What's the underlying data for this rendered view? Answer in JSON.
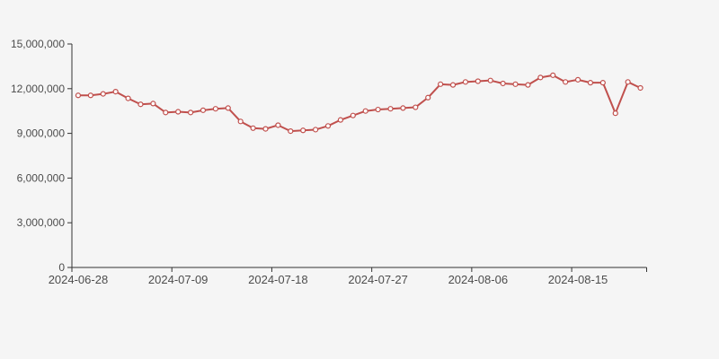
{
  "page": {
    "background_color": "#f5f5f5"
  },
  "chart_data": {
    "type": "line",
    "title": "",
    "xlabel": "",
    "ylabel": "",
    "legend_position": "none",
    "grid": false,
    "marker_style": "hollow-circle",
    "num_points": 46,
    "ylim": [
      0,
      15000000
    ],
    "y_ticks": [
      {
        "value": 0,
        "label": "0"
      },
      {
        "value": 3000000,
        "label": "3,000,000"
      },
      {
        "value": 6000000,
        "label": "6,000,000"
      },
      {
        "value": 9000000,
        "label": "9,000,000"
      },
      {
        "value": 12000000,
        "label": "12,000,000"
      },
      {
        "value": 15000000,
        "label": "15,000,000"
      }
    ],
    "x_ticks": [
      {
        "index": 0,
        "label": "2024-06-28"
      },
      {
        "index": 8,
        "label": "2024-07-09"
      },
      {
        "index": 16,
        "label": "2024-07-18"
      },
      {
        "index": 24,
        "label": "2024-07-27"
      },
      {
        "index": 32,
        "label": "2024-08-06"
      },
      {
        "index": 40,
        "label": "2024-08-15"
      }
    ],
    "series": [
      {
        "name": "value",
        "values": [
          11550000,
          11550000,
          11650000,
          11800000,
          11350000,
          10950000,
          11000000,
          10400000,
          10450000,
          10400000,
          10550000,
          10650000,
          10700000,
          9800000,
          9350000,
          9300000,
          9550000,
          9150000,
          9200000,
          9250000,
          9500000,
          9900000,
          10200000,
          10500000,
          10600000,
          10650000,
          10700000,
          10750000,
          11400000,
          12300000,
          12250000,
          12450000,
          12500000,
          12550000,
          12350000,
          12300000,
          12250000,
          12750000,
          12900000,
          12450000,
          12600000,
          12400000,
          12400000,
          10350000,
          12450000,
          12050000
        ]
      }
    ],
    "colors": {
      "line": "#c0504d",
      "marker_fill": "#ffffff",
      "axis": "#333333",
      "label": "#4d4d4d",
      "background": "#f5f5f5"
    }
  }
}
